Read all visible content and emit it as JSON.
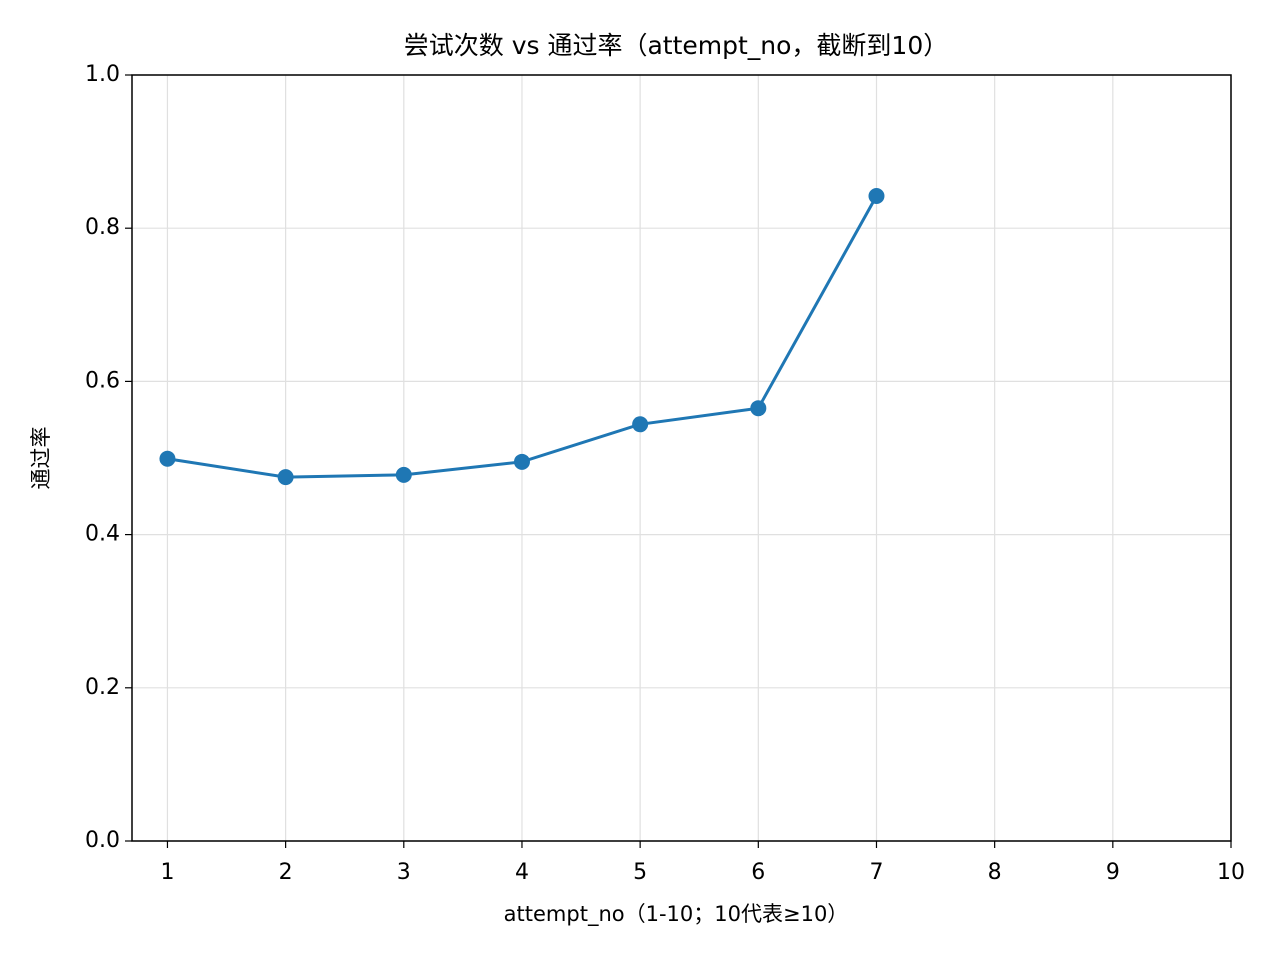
{
  "chart_data": {
    "type": "line",
    "title": "尝试次数 vs 通过率（attempt_no，截断到10）",
    "x_label": "attempt_no（1-10；10代表≥10）",
    "y_label": "通过率",
    "x": [
      1,
      2,
      3,
      4,
      5,
      6,
      7
    ],
    "series": [
      {
        "name": "通过率",
        "color": "#1f77b4",
        "values": [
          0.499,
          0.475,
          0.478,
          0.495,
          0.544,
          0.565,
          0.842
        ]
      }
    ],
    "xlim": [
      0.7,
      10
    ],
    "xticks": [
      1,
      2,
      3,
      4,
      5,
      6,
      7,
      8,
      9,
      10
    ],
    "ylim": [
      0,
      1
    ],
    "yticks": [
      {
        "value": 0,
        "label": "0.0"
      },
      0.2,
      0.4,
      0.6,
      0.8,
      {
        "value": 1,
        "label": "1.0"
      }
    ],
    "grid": true
  }
}
